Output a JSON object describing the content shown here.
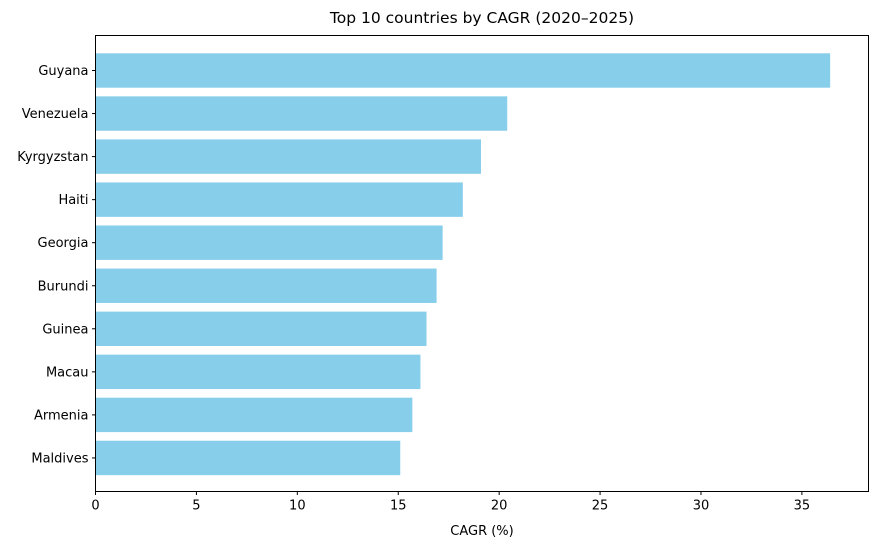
{
  "chart_data": {
    "type": "bar",
    "orientation": "horizontal",
    "title": "Top 10 countries by CAGR (2020–2025)",
    "xlabel": "CAGR (%)",
    "ylabel": "",
    "xlim": [
      0,
      38.3
    ],
    "xticks": [
      0,
      5,
      10,
      15,
      20,
      25,
      30,
      35
    ],
    "categories": [
      "Guyana",
      "Venezuela",
      "Kyrgyzstan",
      "Haiti",
      "Georgia",
      "Burundi",
      "Guinea",
      "Macau",
      "Armenia",
      "Maldives"
    ],
    "values": [
      36.4,
      20.4,
      19.1,
      18.2,
      17.2,
      16.9,
      16.4,
      16.1,
      15.7,
      15.1
    ],
    "bar_color": "#87ceeb",
    "grid": false,
    "legend": "none"
  }
}
